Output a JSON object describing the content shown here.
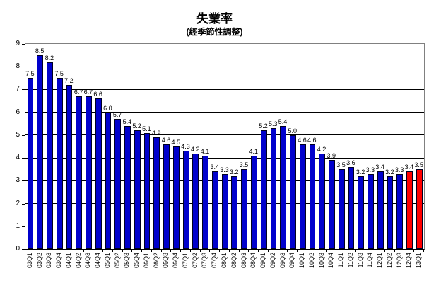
{
  "title": "失業率",
  "subtitle": "(經季節性調整)",
  "colors": {
    "bar_default": "#0000CC",
    "bar_highlight": "#FF0000",
    "bar_border": "#000020",
    "gridline": "#000000",
    "plot_border": "#808080",
    "axis": "#000000",
    "background": "#FFFFFF",
    "text": "#000000"
  },
  "chart_data": {
    "type": "bar",
    "title": "失業率",
    "subtitle": "(經季節性調整)",
    "xlabel": "",
    "ylabel": "",
    "ylim": [
      0,
      9
    ],
    "yticks": [
      0,
      1,
      2,
      3,
      4,
      5,
      6,
      7,
      8,
      9
    ],
    "grid": true,
    "legend": false,
    "data_labels": true,
    "x_label_rotation": 90,
    "categories": [
      "03Q1",
      "03Q2",
      "03Q3",
      "03Q4",
      "04Q1",
      "04Q2",
      "04Q3",
      "04Q4",
      "05Q1",
      "05Q2",
      "05Q3",
      "05Q4",
      "06Q1",
      "06Q2",
      "06Q3",
      "06Q4",
      "07Q1",
      "07Q2",
      "07Q3",
      "07Q4",
      "08Q1",
      "08Q2",
      "08Q3",
      "08Q4",
      "09Q1",
      "09Q2",
      "09Q3",
      "09Q4",
      "10Q1",
      "10Q2",
      "10Q3",
      "10Q4",
      "11Q1",
      "11Q2",
      "11Q3",
      "11Q4",
      "12Q1",
      "12Q2",
      "12Q3",
      "12Q4",
      "13Q1"
    ],
    "series": [
      {
        "name": "失業率",
        "values": [
          7.5,
          8.5,
          8.2,
          7.5,
          7.2,
          6.7,
          6.7,
          6.6,
          6.0,
          5.7,
          5.4,
          5.2,
          5.1,
          4.9,
          4.6,
          4.5,
          4.3,
          4.2,
          4.1,
          3.4,
          3.3,
          3.2,
          3.5,
          4.1,
          5.2,
          5.3,
          5.4,
          5.0,
          4.6,
          4.6,
          4.2,
          3.9,
          3.5,
          3.6,
          3.2,
          3.3,
          3.4,
          3.2,
          3.3,
          3.4,
          3.5
        ]
      }
    ],
    "highlight_indices": [
      39,
      40
    ]
  }
}
